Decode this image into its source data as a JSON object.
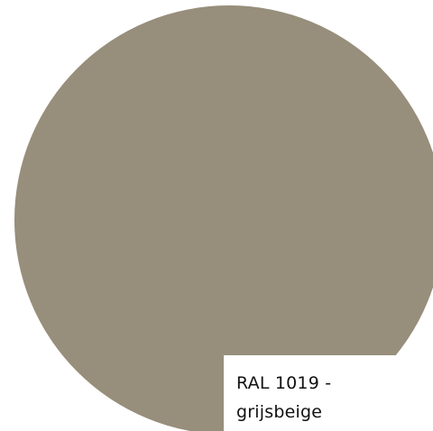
{
  "colors": {
    "swatch": "#978e7b",
    "background": "#ffffff",
    "label_background": "#ffffff",
    "label_text": "#111111"
  },
  "label": {
    "line1": "RAL 1019 -",
    "line2": "grijsbeige"
  }
}
